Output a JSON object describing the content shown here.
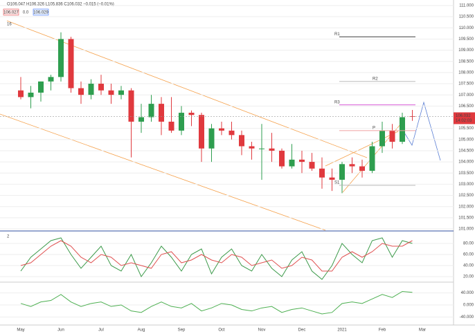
{
  "header": {
    "ohlc": "O106.047 H106.326 L105.836 C106.032 −0.015 (−0.01%)",
    "sell": "106.027",
    "spread": "0.0",
    "buy": "106.029"
  },
  "chart_data": [
    {
      "type": "candlestick",
      "pane_label": "16",
      "categories": [
        "May",
        null,
        null,
        null,
        "Jun",
        null,
        null,
        null,
        "Jul",
        null,
        null,
        null,
        "Aug",
        null,
        null,
        null,
        "Sep",
        null,
        null,
        null,
        "Oct",
        null,
        null,
        null,
        "Nov",
        null,
        null,
        null,
        "Dec",
        null,
        null,
        null,
        "2021",
        null,
        null,
        null,
        "Feb",
        null,
        null,
        null,
        "Mar"
      ],
      "open": [
        107.2,
        106.9,
        107.1,
        107.6,
        107.8,
        109.5,
        107.3,
        107.0,
        107.5,
        107.2,
        107.0,
        107.2,
        105.8,
        106.0,
        106.6,
        105.8,
        105.4,
        106.2,
        106.1,
        104.6,
        105.5,
        105.4,
        105.2,
        104.7,
        104.6,
        104.6,
        104.5,
        103.8,
        104.1,
        104.0,
        103.7,
        103.3,
        103.2,
        103.9,
        103.8,
        103.6,
        104.7,
        105.4,
        104.9,
        106.047,
        null
      ],
      "high": [
        107.8,
        107.4,
        107.6,
        107.9,
        109.8,
        109.6,
        107.6,
        107.7,
        107.9,
        107.5,
        107.4,
        107.3,
        106.6,
        107.0,
        106.9,
        106.9,
        106.5,
        106.3,
        106.2,
        105.7,
        105.8,
        105.8,
        105.4,
        104.9,
        105.7,
        105.3,
        104.6,
        104.8,
        104.5,
        104.4,
        104.2,
        103.7,
        104.0,
        104.2,
        104.1,
        104.9,
        105.8,
        105.7,
        106.2,
        106.326,
        null
      ],
      "low": [
        106.8,
        106.4,
        106.7,
        107.2,
        107.6,
        107.1,
        106.6,
        106.8,
        107.0,
        106.6,
        106.8,
        104.2,
        105.3,
        105.8,
        105.2,
        105.3,
        105.2,
        105.6,
        104.0,
        104.0,
        105.2,
        105.0,
        104.3,
        104.1,
        103.2,
        104.0,
        103.7,
        103.7,
        103.5,
        103.6,
        102.8,
        102.7,
        102.6,
        103.5,
        103.3,
        103.5,
        104.4,
        104.6,
        104.8,
        105.836,
        null
      ],
      "close": [
        106.9,
        107.1,
        107.6,
        107.8,
        109.5,
        107.3,
        107.0,
        107.5,
        107.2,
        107.0,
        107.2,
        105.8,
        106.0,
        106.6,
        105.8,
        105.4,
        106.2,
        106.1,
        104.6,
        105.5,
        105.4,
        105.2,
        104.7,
        104.6,
        104.6,
        104.5,
        103.8,
        104.1,
        104.0,
        103.7,
        103.3,
        103.2,
        103.9,
        103.8,
        103.6,
        104.7,
        105.4,
        104.9,
        106.0,
        106.032,
        null
      ],
      "up_color": "#2e9e4f",
      "down_color": "#e0393e",
      "last_price": 106.032,
      "countdown": "14:02:03",
      "levels": [
        {
          "name": "R1",
          "value": 109.6,
          "color": "#222222"
        },
        {
          "name": "R2",
          "value": 107.6,
          "color": "#b0b0b0"
        },
        {
          "name": "R3",
          "value": 106.55,
          "color": "#d040d0"
        },
        {
          "name": "P",
          "value": 105.4,
          "color": "#f0a0a0"
        },
        {
          "name": "S1",
          "value": 102.95,
          "color": "#b0b0b0"
        }
      ],
      "ylim": [
        101,
        111
      ],
      "yticks": [
        {
          "value": 111,
          "label": "111.000"
        },
        {
          "value": 110.5,
          "label": "110.500"
        },
        {
          "value": 110,
          "label": "110.000"
        },
        {
          "value": 109.5,
          "label": "109.500"
        },
        {
          "value": 109,
          "label": "109.000"
        },
        {
          "value": 108.5,
          "label": "108.500"
        },
        {
          "value": 108,
          "label": "108.000"
        },
        {
          "value": 107.5,
          "label": "107.500"
        },
        {
          "value": 107,
          "label": "107.000"
        },
        {
          "value": 106.5,
          "label": "106.500"
        },
        {
          "value": 105.5,
          "label": "105.500"
        },
        {
          "value": 105,
          "label": "105.000"
        },
        {
          "value": 104.5,
          "label": "104.500"
        },
        {
          "value": 104,
          "label": "104.000"
        },
        {
          "value": 103.5,
          "label": "103.500"
        },
        {
          "value": 103,
          "label": "103.000"
        },
        {
          "value": 102.5,
          "label": "102.500"
        },
        {
          "value": 102,
          "label": "102.000"
        },
        {
          "value": 101.5,
          "label": "101.500"
        },
        {
          "value": 101,
          "label": "101.000"
        }
      ]
    },
    {
      "type": "line",
      "pane_label": "2",
      "series": [
        {
          "color": "#3c9a4a",
          "values": [
            30,
            55,
            70,
            85,
            90,
            60,
            35,
            55,
            75,
            40,
            30,
            60,
            20,
            45,
            75,
            55,
            30,
            60,
            70,
            25,
            55,
            70,
            40,
            30,
            60,
            35,
            20,
            50,
            65,
            30,
            15,
            40,
            80,
            60,
            45,
            85,
            90,
            55,
            85,
            80,
            null
          ]
        },
        {
          "color": "#e05050",
          "values": [
            40,
            45,
            60,
            75,
            85,
            75,
            55,
            45,
            60,
            55,
            40,
            45,
            40,
            35,
            60,
            65,
            45,
            50,
            60,
            50,
            45,
            60,
            55,
            40,
            45,
            50,
            35,
            40,
            55,
            50,
            30,
            30,
            55,
            65,
            55,
            65,
            80,
            75,
            75,
            85,
            null
          ]
        }
      ],
      "ylim": [
        10,
        100
      ],
      "yticks": [
        {
          "value": 80,
          "label": "80.00"
        },
        {
          "value": 60,
          "label": "60.00"
        },
        {
          "value": 40,
          "label": "40.00"
        },
        {
          "value": 20,
          "label": "20.00"
        }
      ]
    },
    {
      "type": "line",
      "series": [
        {
          "color": "#4caf50",
          "values": [
            5,
            -5,
            10,
            15,
            35,
            10,
            -5,
            5,
            10,
            -5,
            0,
            -20,
            -25,
            -5,
            10,
            -5,
            -10,
            5,
            -20,
            -10,
            5,
            0,
            -15,
            -20,
            -10,
            -5,
            -25,
            -15,
            -10,
            -20,
            -30,
            -25,
            5,
            10,
            5,
            20,
            35,
            25,
            45,
            42,
            null
          ]
        }
      ],
      "ylim": [
        -60,
        60
      ],
      "yticks": [
        {
          "value": 40,
          "label": "40.000"
        },
        {
          "value": 0,
          "label": "0.000"
        },
        {
          "value": -40,
          "label": "-40.000"
        }
      ]
    }
  ]
}
